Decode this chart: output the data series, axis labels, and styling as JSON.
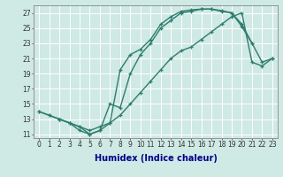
{
  "xlabel": "Humidex (Indice chaleur)",
  "background_color": "#cfe9e4",
  "grid_color": "#ffffff",
  "line_color": "#2e7d6e",
  "xlim": [
    -0.5,
    23.5
  ],
  "ylim": [
    10.5,
    28.0
  ],
  "xtick_labels": [
    "0",
    "1",
    "2",
    "3",
    "4",
    "5",
    "6",
    "7",
    "8",
    "9",
    "10",
    "11",
    "12",
    "13",
    "14",
    "15",
    "16",
    "17",
    "18",
    "19",
    "20",
    "21",
    "22",
    "23"
  ],
  "ytick_vals": [
    11,
    13,
    15,
    17,
    19,
    21,
    23,
    25,
    27
  ],
  "curve1_x": [
    0,
    1,
    2,
    3,
    4,
    5,
    6,
    7,
    8,
    9,
    10,
    11,
    12,
    13,
    14,
    15,
    16,
    17,
    18,
    19,
    20,
    21
  ],
  "curve1_y": [
    14.0,
    13.5,
    13.0,
    12.5,
    11.5,
    11.0,
    11.5,
    12.5,
    19.5,
    21.5,
    22.2,
    23.5,
    25.5,
    26.5,
    27.2,
    27.4,
    27.5,
    27.5,
    27.2,
    27.0,
    25.5,
    23.0
  ],
  "curve2_x": [
    2,
    3,
    4,
    5,
    6,
    7,
    8,
    9,
    10,
    11,
    12,
    13,
    14,
    15,
    16,
    17,
    18,
    19,
    20,
    21,
    22,
    23
  ],
  "curve2_y": [
    13.0,
    12.5,
    12.0,
    11.0,
    11.5,
    15.0,
    14.5,
    19.0,
    21.5,
    23.0,
    25.0,
    26.0,
    27.0,
    27.2,
    27.5,
    27.5,
    27.3,
    27.0,
    25.2,
    23.0,
    20.5,
    21.0
  ],
  "curve3_x": [
    0,
    1,
    2,
    3,
    4,
    5,
    6,
    7,
    8,
    9,
    10,
    11,
    12,
    13,
    14,
    15,
    16,
    17,
    18,
    19,
    20,
    21,
    22,
    23
  ],
  "curve3_y": [
    14.0,
    13.5,
    13.0,
    12.5,
    12.0,
    11.5,
    12.0,
    12.5,
    13.5,
    15.0,
    16.5,
    18.0,
    19.5,
    21.0,
    22.0,
    22.5,
    23.5,
    24.5,
    25.5,
    26.5,
    27.0,
    20.5,
    20.0,
    21.0
  ],
  "xlabel_color": "#00008b",
  "xlabel_fontsize": 7,
  "tick_fontsize": 5.5,
  "lw": 1.0,
  "ms": 3.5
}
